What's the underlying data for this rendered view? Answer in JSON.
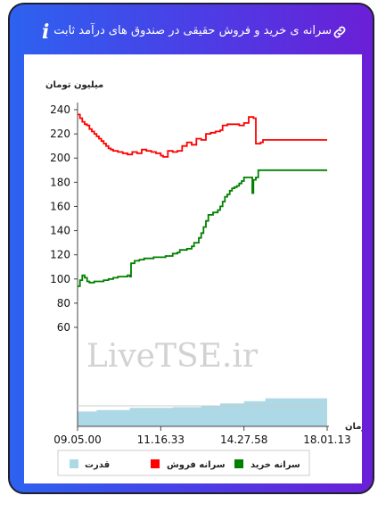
{
  "header": {
    "title": "سرانه ی خرید و فروش حقیقی در صندوق های درآمد ثابت",
    "info_icon": "info-icon",
    "link_icon": "link-icon"
  },
  "chart_data": {
    "type": "line",
    "ylabel": "میلیون تومان",
    "xlabel": "زمان",
    "watermark": "LiveTSE.ir",
    "ylim": [
      60,
      240
    ],
    "yticks": [
      60,
      80,
      100,
      120,
      140,
      160,
      180,
      200,
      220,
      240
    ],
    "x_range": [
      0,
      105
    ],
    "xtick_labels": [
      {
        "x": 0,
        "label": "09.05.00"
      },
      {
        "x": 35,
        "label": "11.16.33"
      },
      {
        "x": 70,
        "label": "14.27.58"
      },
      {
        "x": 105,
        "label": "18.01.13"
      }
    ],
    "series": [
      {
        "name": "سرانه فروش",
        "color": "#ff0000",
        "points": [
          [
            0,
            236
          ],
          [
            1,
            233
          ],
          [
            2,
            230
          ],
          [
            3,
            228
          ],
          [
            4,
            227
          ],
          [
            5,
            224
          ],
          [
            6,
            222
          ],
          [
            7,
            220
          ],
          [
            8,
            218
          ],
          [
            9,
            216
          ],
          [
            10,
            214
          ],
          [
            11,
            212
          ],
          [
            12,
            210
          ],
          [
            13,
            208
          ],
          [
            14,
            207
          ],
          [
            15,
            206
          ],
          [
            17,
            205
          ],
          [
            19,
            204
          ],
          [
            21,
            203
          ],
          [
            23,
            205
          ],
          [
            25,
            204
          ],
          [
            27,
            207
          ],
          [
            29,
            206
          ],
          [
            31,
            205
          ],
          [
            33,
            204
          ],
          [
            35,
            202
          ],
          [
            36,
            201
          ],
          [
            38,
            206
          ],
          [
            40,
            205
          ],
          [
            42,
            206
          ],
          [
            44,
            210
          ],
          [
            46,
            213
          ],
          [
            48,
            211
          ],
          [
            50,
            216
          ],
          [
            52,
            215
          ],
          [
            54,
            220
          ],
          [
            56,
            221
          ],
          [
            58,
            222
          ],
          [
            60,
            223
          ],
          [
            61,
            227
          ],
          [
            63,
            228
          ],
          [
            66,
            228
          ],
          [
            68,
            227
          ],
          [
            70,
            229
          ],
          [
            72,
            234
          ],
          [
            73,
            234
          ],
          [
            74,
            233
          ],
          [
            75,
            212
          ],
          [
            77,
            213
          ],
          [
            78,
            215
          ],
          [
            105,
            215
          ]
        ]
      },
      {
        "name": "سرانه خرید",
        "color": "#008000",
        "points": [
          [
            0,
            94
          ],
          [
            1,
            99
          ],
          [
            2,
            103
          ],
          [
            3,
            101
          ],
          [
            4,
            98
          ],
          [
            5,
            97
          ],
          [
            7,
            98
          ],
          [
            9,
            98
          ],
          [
            11,
            99
          ],
          [
            13,
            100
          ],
          [
            15,
            101
          ],
          [
            17,
            102
          ],
          [
            19,
            102
          ],
          [
            21,
            103
          ],
          [
            22,
            102
          ],
          [
            22.5,
            113
          ],
          [
            24,
            115
          ],
          [
            26,
            116
          ],
          [
            28,
            117
          ],
          [
            30,
            117
          ],
          [
            32,
            118
          ],
          [
            35,
            118
          ],
          [
            37,
            119
          ],
          [
            40,
            121
          ],
          [
            42,
            122
          ],
          [
            43,
            124
          ],
          [
            46,
            125
          ],
          [
            48,
            127
          ],
          [
            49,
            130
          ],
          [
            51,
            134
          ],
          [
            52,
            138
          ],
          [
            53,
            143
          ],
          [
            54,
            148
          ],
          [
            55,
            153
          ],
          [
            57,
            155
          ],
          [
            59,
            157
          ],
          [
            60,
            160
          ],
          [
            61,
            164
          ],
          [
            62,
            168
          ],
          [
            63,
            170
          ],
          [
            64,
            173
          ],
          [
            65,
            175
          ],
          [
            66,
            176
          ],
          [
            67,
            177
          ],
          [
            68,
            179
          ],
          [
            69,
            181
          ],
          [
            70,
            184
          ],
          [
            73,
            184
          ],
          [
            73.5,
            171
          ],
          [
            74,
            182
          ],
          [
            75,
            184
          ],
          [
            76,
            190
          ],
          [
            105,
            190
          ]
        ]
      },
      {
        "name": "قدرت",
        "color": "#add8e6",
        "type": "area",
        "points": [
          [
            0,
            2
          ],
          [
            8,
            2.2
          ],
          [
            22,
            2.5
          ],
          [
            40,
            2.6
          ],
          [
            52,
            2.8
          ],
          [
            60,
            3.1
          ],
          [
            70,
            3.4
          ],
          [
            79,
            3.8
          ],
          [
            90,
            3.8
          ],
          [
            105,
            3.8
          ]
        ]
      }
    ],
    "legend": {
      "position": "bottom",
      "items": [
        {
          "label": "قدرت",
          "color": "#add8e6"
        },
        {
          "label": "سرانه فروش",
          "color": "#ff0000"
        },
        {
          "label": "سرانه خرید",
          "color": "#008000"
        }
      ]
    }
  }
}
